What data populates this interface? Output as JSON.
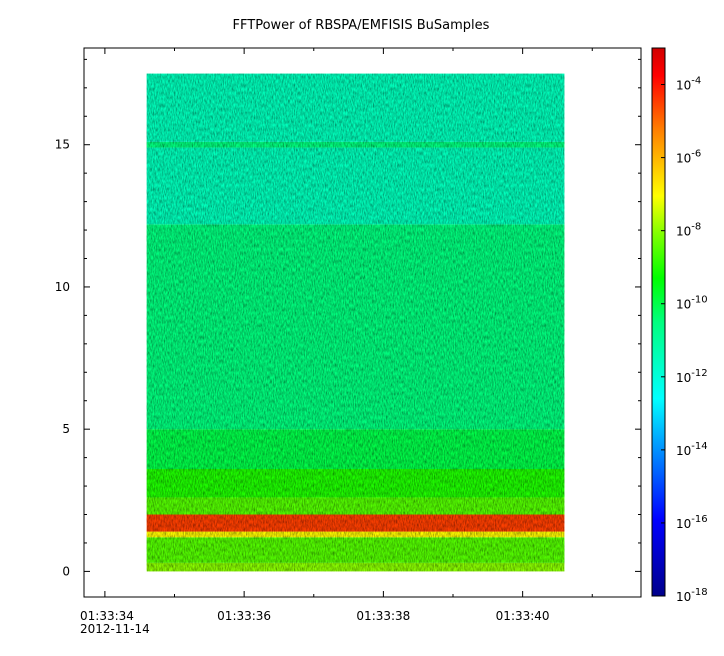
{
  "chart_data": {
    "type": "heatmap",
    "title": "FFTPower of RBSPA/EMFISIS  BuSamples",
    "xlabel": "",
    "ylabel": "",
    "x_ticks": [
      "01:33:34",
      "01:33:36",
      "01:33:38",
      "01:33:40"
    ],
    "x_date": "2012-11-14",
    "xlim": [
      "01:33:33.7",
      "01:33:41.7"
    ],
    "y_ticks": [
      0,
      5,
      10,
      15
    ],
    "ylim": [
      -0.9,
      18.4
    ],
    "data_x_range": [
      "01:33:34.6",
      "01:33:40.6"
    ],
    "data_y_range": [
      0,
      17.5
    ],
    "color_scale": "log",
    "clim": [
      1e-18,
      0.001
    ],
    "colorbar_ticks": [
      {
        "base": "10",
        "exp": "-4"
      },
      {
        "base": "10",
        "exp": "-6"
      },
      {
        "base": "10",
        "exp": "-8"
      },
      {
        "base": "10",
        "exp": "-10"
      },
      {
        "base": "10",
        "exp": "-12"
      },
      {
        "base": "10",
        "exp": "-14"
      },
      {
        "base": "10",
        "exp": "-16"
      },
      {
        "base": "10",
        "exp": "-18"
      }
    ],
    "colorbar_tick_values": [
      -4,
      -6,
      -8,
      -10,
      -12,
      -14,
      -16,
      -18
    ],
    "colormap": [
      "#00008b",
      "#0000ff",
      "#00ffff",
      "#00ff00",
      "#ffff00",
      "#ff8000",
      "#ff0000",
      "#cc0000"
    ],
    "spectral_bands": [
      {
        "y_from": 0,
        "y_to": 0.3,
        "log_power": -8
      },
      {
        "y_from": 0.3,
        "y_to": 1.2,
        "log_power": -8.5
      },
      {
        "y_from": 1.2,
        "y_to": 1.4,
        "log_power": -7
      },
      {
        "y_from": 1.4,
        "y_to": 2.0,
        "log_power": -4.5
      },
      {
        "y_from": 2.0,
        "y_to": 2.6,
        "log_power": -8.5
      },
      {
        "y_from": 2.6,
        "y_to": 3.6,
        "log_power": -9
      },
      {
        "y_from": 3.6,
        "y_to": 5.0,
        "log_power": -10
      },
      {
        "y_from": 5.0,
        "y_to": 12.2,
        "log_power": -10.5
      },
      {
        "y_from": 12.2,
        "y_to": 14.9,
        "log_power": -11.5
      },
      {
        "y_from": 14.9,
        "y_to": 15.1,
        "log_power": -10.5
      },
      {
        "y_from": 15.1,
        "y_to": 17.5,
        "log_power": -11.5
      }
    ]
  }
}
